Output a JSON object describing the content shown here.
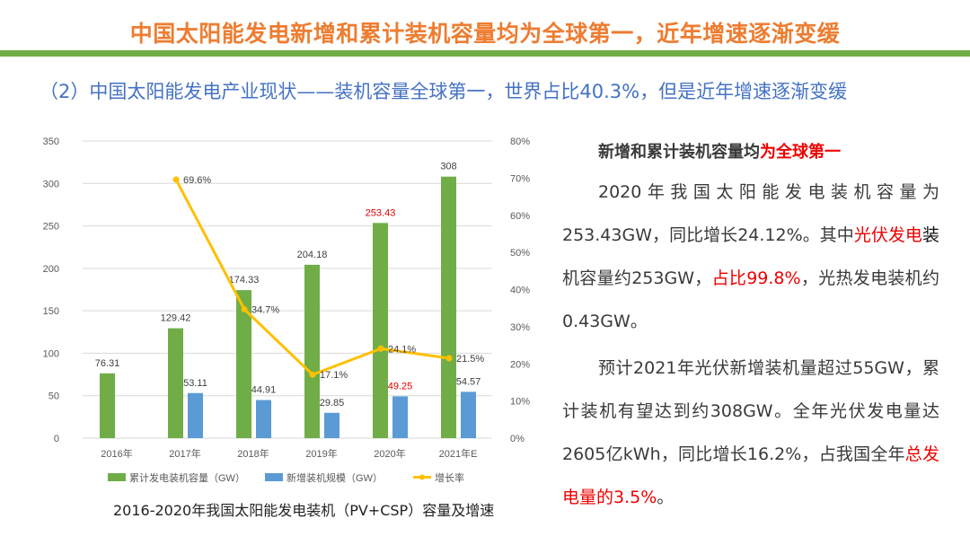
{
  "header": {
    "title": "中国太阳能发电新增和累计装机容量均为全球第一，近年增速逐渐变缓",
    "subtitle": "（2）中国太阳能发电产业现状——装机容量全球第一，世界占比40.3%，但是近年增速逐渐变缓"
  },
  "chart_data": {
    "type": "bar+line",
    "title": "2016-2020年我国太阳能发电装机（PV+CSP）容量及增速",
    "categories": [
      "2016年",
      "2017年",
      "2018年",
      "2019年",
      "2020年",
      "2021年E"
    ],
    "y_left": {
      "min": 0,
      "max": 350,
      "ticks": [
        "0",
        "50",
        "100",
        "150",
        "200",
        "250",
        "300",
        "350"
      ]
    },
    "y_right": {
      "min": 0,
      "max": 80,
      "ticks": [
        "0%",
        "10%",
        "20%",
        "30%",
        "40%",
        "50%",
        "60%",
        "70%",
        "80%"
      ]
    },
    "grid": true,
    "legend_position": "bottom",
    "series": [
      {
        "name": "累计发电装机容量（GW）",
        "type": "bar",
        "color": "#70ad47",
        "values": [
          76.31,
          129.42,
          174.33,
          204.18,
          253.43,
          308
        ],
        "labels": [
          "76.31",
          "129.42",
          "174.33",
          "204.18",
          "253.43",
          "308"
        ],
        "highlight": [
          false,
          false,
          false,
          false,
          true,
          false
        ]
      },
      {
        "name": "新增装机规模（GW）",
        "type": "bar",
        "color": "#5b9bd5",
        "values": [
          null,
          53.11,
          44.91,
          29.85,
          49.25,
          54.57
        ],
        "labels": [
          "",
          "53.11",
          "44.91",
          "29.85",
          "49.25",
          "54.57"
        ],
        "highlight": [
          false,
          false,
          false,
          false,
          true,
          false
        ]
      },
      {
        "name": "增长率",
        "type": "line",
        "axis": "right",
        "color": "#ffc000",
        "values": [
          null,
          69.6,
          34.7,
          17.1,
          24.1,
          21.5
        ],
        "labels": [
          "",
          "69.6%",
          "34.7%",
          "17.1%",
          "24.1%",
          "21.5%"
        ]
      }
    ],
    "highlight_color": "#e00000"
  },
  "text": {
    "heading": [
      {
        "t": "新增和累计装机容量均",
        "red": false
      },
      {
        "t": "为全球第一",
        "red": true
      }
    ],
    "paragraphs": [
      [
        {
          "t": "2020年我国太阳能发电装机容量为253.43GW，同比增长24.12%。其中",
          "red": false
        },
        {
          "t": "光伏发电",
          "red": true
        },
        {
          "t": "装",
          "red": false,
          "dark": true
        },
        {
          "t": "机容量约253GW，",
          "red": false
        },
        {
          "t": "占比99.8%",
          "red": true
        },
        {
          "t": "，光热发电装机约0.43GW。",
          "red": false
        }
      ],
      [
        {
          "t": "预计2021年光伏新增装机量超过55GW，累计装机有望达到约308GW。全年光伏发电量达2605亿kWh，同比增长16.2%，占我国全年",
          "red": false
        },
        {
          "t": "总发电量的3.5%",
          "red": true
        },
        {
          "t": "。",
          "red": false
        }
      ]
    ]
  }
}
